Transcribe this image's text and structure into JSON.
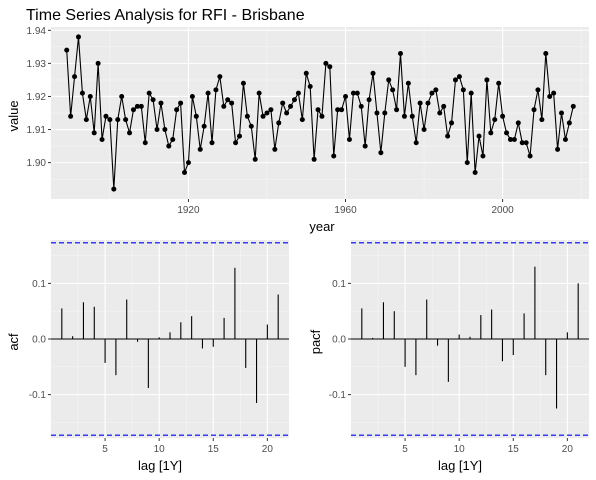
{
  "chart_data": [
    {
      "type": "line",
      "title": "Time Series Analysis for RFI - Brisbane",
      "xlabel": "year",
      "ylabel": "value",
      "xlim": [
        1885,
        2022
      ],
      "ylim": [
        1.889,
        1.941
      ],
      "xticks": [
        1920,
        1960,
        2000
      ],
      "yticks": [
        1.9,
        1.91,
        1.92,
        1.93,
        1.94
      ],
      "ytick_labels": [
        "1.90",
        "1.91",
        "1.92",
        "1.93",
        "1.94"
      ],
      "grid": true,
      "x_start": 1889,
      "values": [
        1.934,
        1.914,
        1.926,
        1.938,
        1.921,
        1.913,
        1.92,
        1.909,
        1.93,
        1.907,
        1.914,
        1.913,
        1.892,
        1.913,
        1.92,
        1.913,
        1.909,
        1.916,
        1.917,
        1.917,
        1.906,
        1.921,
        1.919,
        1.91,
        1.918,
        1.91,
        1.905,
        1.907,
        1.916,
        1.918,
        1.897,
        1.9,
        1.92,
        1.914,
        1.904,
        1.911,
        1.921,
        1.906,
        1.922,
        1.926,
        1.917,
        1.919,
        1.918,
        1.906,
        1.908,
        1.924,
        1.914,
        1.911,
        1.901,
        1.921,
        1.914,
        1.915,
        1.916,
        1.904,
        1.912,
        1.918,
        1.915,
        1.917,
        1.919,
        1.921,
        1.913,
        1.927,
        1.923,
        1.901,
        1.916,
        1.914,
        1.93,
        1.929,
        1.902,
        1.916,
        1.916,
        1.92,
        1.907,
        1.921,
        1.921,
        1.917,
        1.905,
        1.919,
        1.927,
        1.915,
        1.903,
        1.915,
        1.925,
        1.922,
        1.916,
        1.933,
        1.914,
        1.924,
        1.914,
        1.906,
        1.918,
        1.91,
        1.918,
        1.921,
        1.922,
        1.915,
        1.917,
        1.908,
        1.912,
        1.925,
        1.926,
        1.922,
        1.9,
        1.921,
        1.897,
        1.908,
        1.902,
        1.925,
        1.909,
        1.913,
        1.924,
        1.914,
        1.909,
        1.907,
        1.907,
        1.912,
        1.906,
        1.906,
        1.902,
        1.916,
        1.922,
        1.913,
        1.933,
        1.92,
        1.921,
        1.904,
        1.915,
        1.907,
        1.912,
        1.917
      ]
    },
    {
      "type": "bar",
      "xlabel": "lag [1Y]",
      "ylabel": "acf",
      "xlim": [
        0,
        22
      ],
      "ylim": [
        -0.178,
        0.178
      ],
      "xticks": [
        5,
        10,
        15,
        20
      ],
      "yticks": [
        -0.1,
        0.0,
        0.1
      ],
      "ytick_labels": [
        "-0.1",
        "0.0",
        "0.1"
      ],
      "grid": true,
      "confidence_bound": 0.173,
      "lags": [
        1,
        2,
        3,
        4,
        5,
        6,
        7,
        8,
        9,
        10,
        11,
        12,
        13,
        14,
        15,
        16,
        17,
        18,
        19,
        20,
        21
      ],
      "values": [
        0.055,
        0.005,
        0.066,
        0.058,
        -0.043,
        -0.065,
        0.071,
        -0.005,
        -0.088,
        0.003,
        0.012,
        0.03,
        0.041,
        -0.017,
        -0.014,
        0.038,
        0.128,
        -0.052,
        -0.115,
        0.026,
        0.08
      ]
    },
    {
      "type": "bar",
      "xlabel": "lag [1Y]",
      "ylabel": "pacf",
      "xlim": [
        0,
        22
      ],
      "ylim": [
        -0.178,
        0.178
      ],
      "xticks": [
        5,
        10,
        15,
        20
      ],
      "yticks": [
        -0.1,
        0.0,
        0.1
      ],
      "ytick_labels": [
        "-0.1",
        "0.0",
        "0.1"
      ],
      "grid": true,
      "confidence_bound": 0.173,
      "lags": [
        1,
        2,
        3,
        4,
        5,
        6,
        7,
        8,
        9,
        10,
        11,
        12,
        13,
        14,
        15,
        16,
        17,
        18,
        19,
        20,
        21
      ],
      "values": [
        0.055,
        0.002,
        0.066,
        0.05,
        -0.05,
        -0.065,
        0.071,
        -0.012,
        -0.077,
        0.008,
        0.004,
        0.043,
        0.053,
        -0.04,
        -0.029,
        0.046,
        0.13,
        -0.065,
        -0.125,
        0.012,
        0.1
      ]
    }
  ]
}
